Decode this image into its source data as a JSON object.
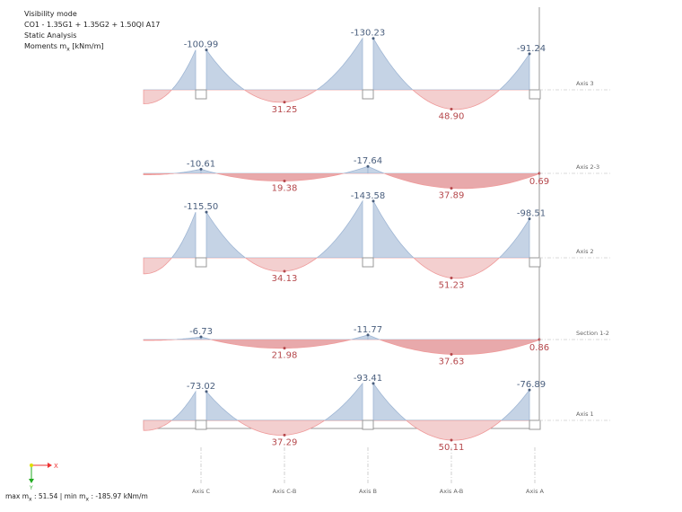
{
  "info": {
    "line1": "Visibility mode",
    "line2": "CO1 - 1.35G1 + 1.35G2 + 1.50QI A17",
    "line3": "Static Analysis",
    "line4_prefix": "Moments m",
    "line4_sub": "x",
    "line4_suffix": " [kNm/m]"
  },
  "footer": {
    "max_prefix": "max m",
    "sub": "x",
    "max_value": " : 51.54 | min m",
    "min_value": " : -185.97 kNm/m"
  },
  "colors": {
    "negative_fill": "#c5d3e5",
    "positive_fill": "#f3cfcf",
    "negative_text": "#4a5f7e",
    "positive_text": "#b5474b"
  },
  "coord_icon": {
    "x_label": "X",
    "y_label": "Y"
  },
  "grid_axes": [
    "Axis C",
    "Axis C-B",
    "Axis B",
    "Axis A-B",
    "Axis A"
  ],
  "rows": [
    {
      "label": "Axis 3",
      "columns": true,
      "supports": [
        "-100.99",
        "-130.23",
        "-91.24"
      ],
      "spans": [
        "31.25",
        "48.90"
      ],
      "end_value": null
    },
    {
      "label": "Axis  2-3",
      "columns": false,
      "supports": [
        "-10.61",
        "-17.64",
        null
      ],
      "spans": [
        "19.38",
        "37.89"
      ],
      "end_value": "0.69"
    },
    {
      "label": "Axis 2",
      "columns": true,
      "supports": [
        "-115.50",
        "-143.58",
        "-98.51"
      ],
      "spans": [
        "34.13",
        "51.23"
      ],
      "end_value": null
    },
    {
      "label": "Section 1-2",
      "columns": false,
      "supports": [
        "-6.73",
        "-11.77",
        null
      ],
      "spans": [
        "21.98",
        "37.63"
      ],
      "end_value": "0.86"
    },
    {
      "label": "Axis 1",
      "columns": true,
      "supports": [
        "-73.02",
        "-93.41",
        "-76.89"
      ],
      "spans": [
        "37.29",
        "50.11"
      ],
      "end_value": null
    }
  ]
}
